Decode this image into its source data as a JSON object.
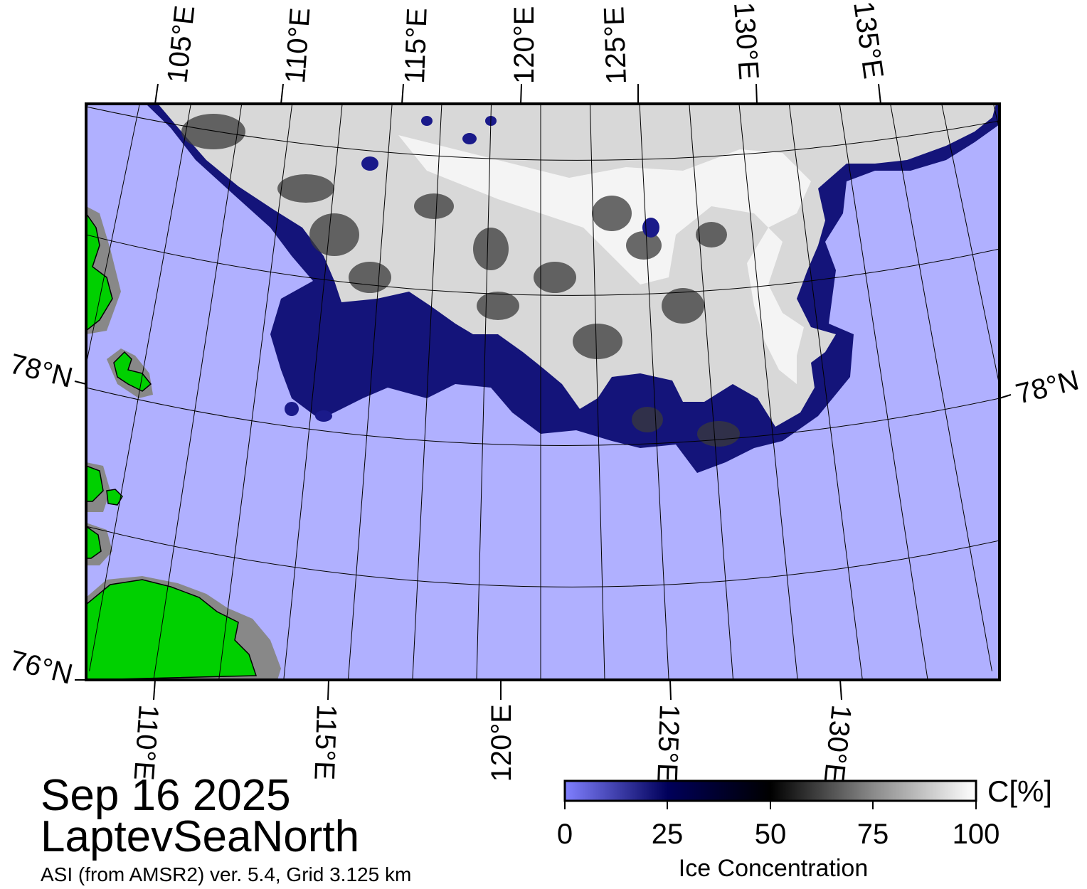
{
  "map": {
    "date": "Sep 16 2025",
    "region": "LaptevSeaNorth",
    "source": "ASI (from AMSR2) ver. 5.4,  Grid 3.125 km",
    "top_lon_labels": [
      "105°E",
      "110°E",
      "115°E",
      "120°E",
      "125°E",
      "130°E",
      "135°E"
    ],
    "bottom_lon_labels": [
      "110°E",
      "115°E",
      "120°E",
      "125°E",
      "130°E"
    ],
    "left_lat_labels": [
      "78°N",
      "76°N"
    ],
    "right_lat_labels": [
      "78°N"
    ],
    "colors": {
      "open_water": "#b0b0ff",
      "land": "#00d000",
      "ice_high": "#ffffff",
      "ice_mid": "#000000",
      "ice_low": "#00007a"
    }
  },
  "colorbar": {
    "title": "Ice Concentration",
    "unit": "C[%]",
    "ticks": [
      "0",
      "25",
      "50",
      "75",
      "100"
    ],
    "range": [
      0,
      100
    ],
    "stops": [
      {
        "value": 0,
        "color": "#8080ff"
      },
      {
        "value": 25,
        "color": "#00005a"
      },
      {
        "value": 50,
        "color": "#000000"
      },
      {
        "value": 75,
        "color": "#8a8a8a"
      },
      {
        "value": 100,
        "color": "#ffffff"
      }
    ]
  }
}
